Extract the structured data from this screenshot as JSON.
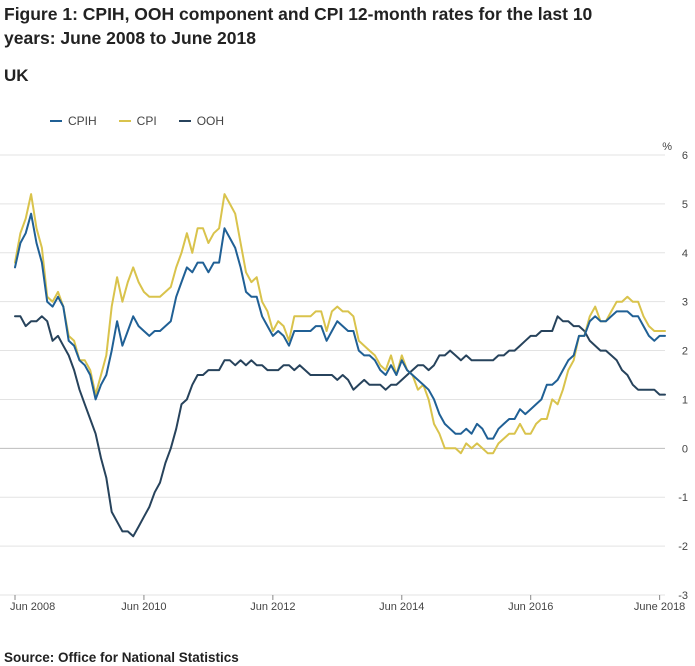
{
  "title": "Figure 1: CPIH, OOH component and CPI 12-month rates for the last 10 years: June 2008 to June 2018",
  "region": "UK",
  "source": "Source: Office for National Statistics",
  "chart_data": {
    "type": "line",
    "unit_label": "%",
    "ylim": [
      -3,
      6
    ],
    "y_ticks": [
      6,
      5,
      4,
      3,
      2,
      1,
      0,
      -1,
      -2,
      -3
    ],
    "x_ticks": [
      {
        "label": "Jun 2008",
        "index": 0
      },
      {
        "label": "Jun 2010",
        "index": 24
      },
      {
        "label": "Jun 2012",
        "index": 48
      },
      {
        "label": "Jun 2014",
        "index": 72
      },
      {
        "label": "Jun 2016",
        "index": 96
      },
      {
        "label": "June 2018",
        "index": 120
      }
    ],
    "series": [
      {
        "name": "CPIH",
        "color": "#206095",
        "values": [
          3.7,
          4.2,
          4.4,
          4.8,
          4.2,
          3.8,
          3.0,
          2.9,
          3.1,
          2.9,
          2.2,
          2.1,
          1.8,
          1.7,
          1.5,
          1.0,
          1.3,
          1.5,
          2.0,
          2.6,
          2.1,
          2.4,
          2.7,
          2.5,
          2.4,
          2.3,
          2.4,
          2.4,
          2.5,
          2.6,
          3.1,
          3.4,
          3.7,
          3.6,
          3.8,
          3.8,
          3.6,
          3.8,
          3.8,
          4.5,
          4.3,
          4.1,
          3.7,
          3.2,
          3.1,
          3.1,
          2.7,
          2.5,
          2.3,
          2.4,
          2.3,
          2.1,
          2.4,
          2.4,
          2.4,
          2.4,
          2.5,
          2.5,
          2.2,
          2.4,
          2.6,
          2.5,
          2.4,
          2.4,
          2.0,
          1.9,
          1.9,
          1.8,
          1.6,
          1.5,
          1.7,
          1.5,
          1.8,
          1.6,
          1.5,
          1.4,
          1.3,
          1.2,
          1.0,
          0.7,
          0.5,
          0.4,
          0.3,
          0.3,
          0.4,
          0.3,
          0.5,
          0.4,
          0.2,
          0.2,
          0.4,
          0.5,
          0.6,
          0.6,
          0.8,
          0.7,
          0.8,
          0.9,
          1.0,
          1.3,
          1.3,
          1.4,
          1.6,
          1.8,
          1.9,
          2.3,
          2.3,
          2.6,
          2.7,
          2.6,
          2.6,
          2.7,
          2.8,
          2.8,
          2.8,
          2.7,
          2.7,
          2.5,
          2.3,
          2.2,
          2.3,
          2.3
        ]
      },
      {
        "name": "CPI",
        "color": "#d9c34c",
        "values": [
          3.8,
          4.4,
          4.7,
          5.2,
          4.5,
          4.1,
          3.1,
          3.0,
          3.2,
          2.9,
          2.3,
          2.2,
          1.8,
          1.8,
          1.6,
          1.1,
          1.5,
          1.9,
          2.9,
          3.5,
          3.0,
          3.4,
          3.7,
          3.4,
          3.2,
          3.1,
          3.1,
          3.1,
          3.2,
          3.3,
          3.7,
          4.0,
          4.4,
          4.0,
          4.5,
          4.5,
          4.2,
          4.4,
          4.5,
          5.2,
          5.0,
          4.8,
          4.2,
          3.6,
          3.4,
          3.5,
          3.0,
          2.8,
          2.4,
          2.6,
          2.5,
          2.2,
          2.7,
          2.7,
          2.7,
          2.7,
          2.8,
          2.8,
          2.4,
          2.8,
          2.9,
          2.8,
          2.8,
          2.7,
          2.2,
          2.1,
          2.0,
          1.9,
          1.7,
          1.6,
          1.9,
          1.5,
          1.9,
          1.6,
          1.5,
          1.2,
          1.3,
          1.0,
          0.5,
          0.3,
          0.0,
          0.0,
          0.0,
          -0.1,
          0.1,
          0.0,
          0.1,
          0.0,
          -0.1,
          -0.1,
          0.1,
          0.2,
          0.3,
          0.3,
          0.5,
          0.3,
          0.3,
          0.5,
          0.6,
          0.6,
          1.0,
          0.9,
          1.2,
          1.6,
          1.8,
          2.3,
          2.3,
          2.7,
          2.9,
          2.6,
          2.6,
          2.8,
          3.0,
          3.0,
          3.1,
          3.0,
          3.0,
          2.7,
          2.5,
          2.4,
          2.4,
          2.4
        ]
      },
      {
        "name": "OOH",
        "color": "#27435c",
        "values": [
          2.7,
          2.7,
          2.5,
          2.6,
          2.6,
          2.7,
          2.6,
          2.2,
          2.3,
          2.1,
          1.9,
          1.6,
          1.2,
          0.9,
          0.6,
          0.3,
          -0.2,
          -0.6,
          -1.3,
          -1.5,
          -1.7,
          -1.7,
          -1.8,
          -1.6,
          -1.4,
          -1.2,
          -0.9,
          -0.7,
          -0.3,
          0.0,
          0.4,
          0.9,
          1.0,
          1.3,
          1.5,
          1.5,
          1.6,
          1.6,
          1.6,
          1.8,
          1.8,
          1.7,
          1.8,
          1.7,
          1.8,
          1.7,
          1.7,
          1.6,
          1.6,
          1.6,
          1.7,
          1.7,
          1.6,
          1.7,
          1.6,
          1.5,
          1.5,
          1.5,
          1.5,
          1.5,
          1.4,
          1.5,
          1.4,
          1.2,
          1.3,
          1.4,
          1.3,
          1.3,
          1.3,
          1.2,
          1.3,
          1.3,
          1.4,
          1.5,
          1.6,
          1.7,
          1.7,
          1.6,
          1.7,
          1.9,
          1.9,
          2.0,
          1.9,
          1.8,
          1.9,
          1.8,
          1.8,
          1.8,
          1.8,
          1.8,
          1.9,
          1.9,
          2.0,
          2.0,
          2.1,
          2.2,
          2.3,
          2.3,
          2.4,
          2.4,
          2.4,
          2.7,
          2.6,
          2.6,
          2.5,
          2.5,
          2.4,
          2.2,
          2.1,
          2.0,
          2.0,
          1.9,
          1.8,
          1.6,
          1.5,
          1.3,
          1.2,
          1.2,
          1.2,
          1.2,
          1.1,
          1.1
        ]
      }
    ]
  }
}
